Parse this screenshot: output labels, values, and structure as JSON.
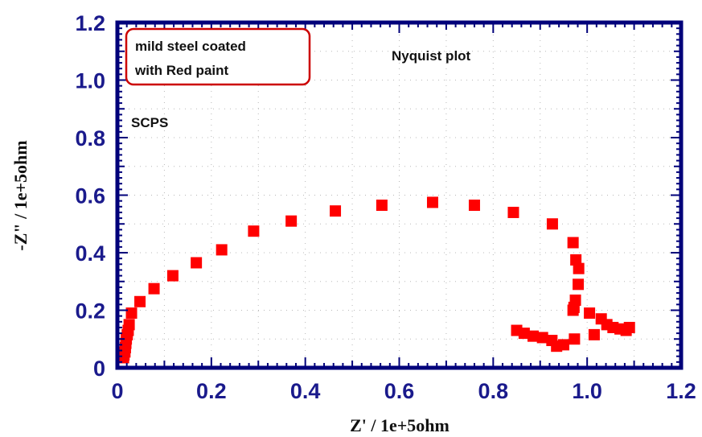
{
  "chart_data": {
    "type": "scatter",
    "title": "Nyquist plot",
    "xlabel": "Z' / 1e+5ohm",
    "ylabel": "-Z\" / 1e+5ohm",
    "xlim": [
      0,
      1.2
    ],
    "ylim": [
      0,
      1.2
    ],
    "xticks": [
      0,
      0.2,
      0.4,
      0.6,
      0.8,
      1.0,
      1.2
    ],
    "yticks": [
      0,
      0.2,
      0.4,
      0.6,
      0.8,
      1.0,
      1.2
    ],
    "xtick_labels": [
      "0",
      "0.2",
      "0.4",
      "0.6",
      "0.8",
      "1.0",
      "1.2"
    ],
    "ytick_labels": [
      "0",
      "0.2",
      "0.4",
      "0.6",
      "0.8",
      "1.0",
      "1.2"
    ],
    "grid": true,
    "annotations": {
      "legend_box_line1": "mild steel coated",
      "legend_box_line2": "with Red paint",
      "scps_label": "SCPS"
    },
    "series": [
      {
        "marker": "square",
        "color": "#ff0000",
        "points": [
          [
            0.013,
            0.035
          ],
          [
            0.014,
            0.045
          ],
          [
            0.016,
            0.055
          ],
          [
            0.017,
            0.07
          ],
          [
            0.018,
            0.085
          ],
          [
            0.019,
            0.1
          ],
          [
            0.021,
            0.115
          ],
          [
            0.023,
            0.13
          ],
          [
            0.025,
            0.15
          ],
          [
            0.03,
            0.19
          ],
          [
            0.048,
            0.23
          ],
          [
            0.078,
            0.275
          ],
          [
            0.118,
            0.32
          ],
          [
            0.168,
            0.365
          ],
          [
            0.222,
            0.41
          ],
          [
            0.29,
            0.475
          ],
          [
            0.37,
            0.51
          ],
          [
            0.464,
            0.545
          ],
          [
            0.563,
            0.565
          ],
          [
            0.671,
            0.575
          ],
          [
            0.76,
            0.565
          ],
          [
            0.843,
            0.54
          ],
          [
            0.926,
            0.5
          ],
          [
            0.97,
            0.435
          ],
          [
            0.976,
            0.375
          ],
          [
            0.982,
            0.345
          ],
          [
            0.981,
            0.29
          ],
          [
            0.975,
            0.235
          ],
          [
            0.972,
            0.21
          ],
          [
            0.97,
            0.2
          ],
          [
            0.973,
            0.1
          ],
          [
            0.95,
            0.08
          ],
          [
            0.935,
            0.075
          ],
          [
            0.925,
            0.095
          ],
          [
            0.905,
            0.105
          ],
          [
            0.885,
            0.11
          ],
          [
            0.866,
            0.12
          ],
          [
            0.85,
            0.13
          ],
          [
            1.015,
            0.115
          ],
          [
            1.005,
            0.19
          ],
          [
            1.03,
            0.17
          ],
          [
            1.042,
            0.15
          ],
          [
            1.055,
            0.14
          ],
          [
            1.07,
            0.135
          ],
          [
            1.083,
            0.13
          ],
          [
            1.09,
            0.14
          ]
        ]
      }
    ]
  }
}
